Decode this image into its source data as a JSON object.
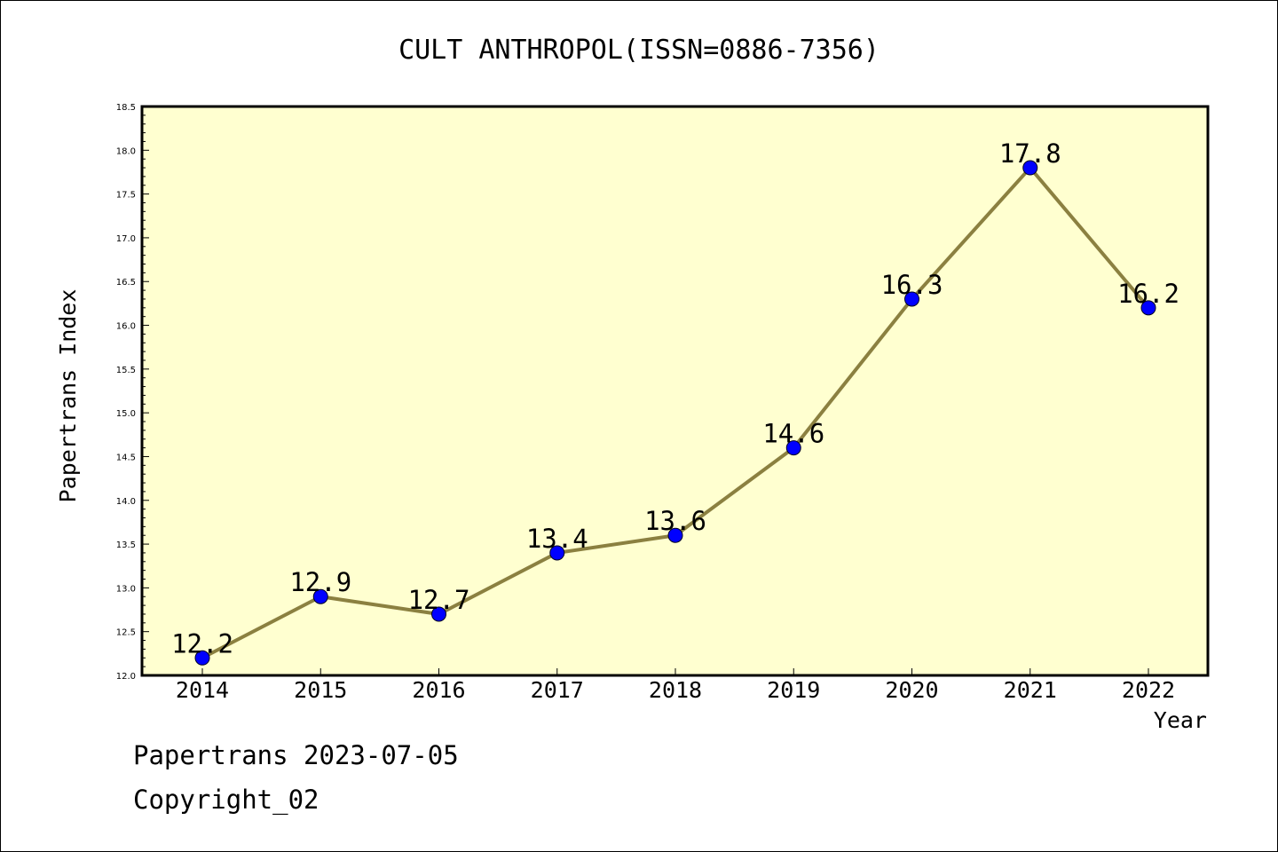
{
  "chart_data": {
    "type": "line",
    "title": "CULT ANTHROPOL(ISSN=0886-7356)",
    "xlabel": "Year",
    "ylabel": "Papertrans Index",
    "categories": [
      "2014",
      "2015",
      "2016",
      "2017",
      "2018",
      "2019",
      "2020",
      "2021",
      "2022"
    ],
    "values": [
      12.2,
      12.9,
      12.7,
      13.4,
      13.6,
      14.6,
      16.3,
      17.8,
      16.2
    ],
    "data_labels": [
      "12.2",
      "12.9",
      "12.7",
      "13.4",
      "13.6",
      "14.6",
      "16.3",
      "17.8",
      "16.2"
    ],
    "ylim": [
      12.0,
      18.5
    ],
    "yticks": [
      "12.0",
      "12.5",
      "13.0",
      "13.5",
      "14.0",
      "14.5",
      "15.0",
      "15.5",
      "16.0",
      "16.5",
      "17.0",
      "17.5",
      "18.0",
      "18.5"
    ],
    "grid": false,
    "legend": "none",
    "colors": {
      "plot_background": "#ffffd0",
      "line": "#8b8040",
      "marker": "#0000ff"
    }
  },
  "footer": {
    "line1": "Papertrans 2023-07-05",
    "line2": "Copyright_02"
  }
}
